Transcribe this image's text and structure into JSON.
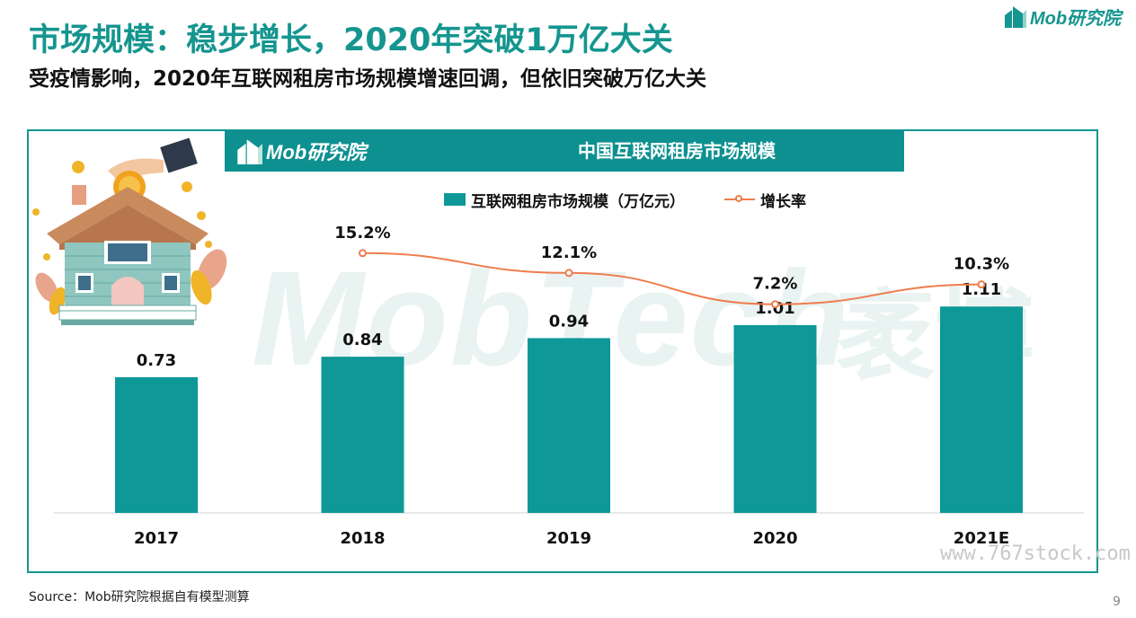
{
  "page": {
    "title": "市场规模：稳步增长，2020年突破1万亿大关",
    "subtitle": "受疫情影响，2020年互联网租房市场规模增速回调，但依旧突破万亿大关",
    "logo_text": "Mob研究院",
    "source": "Source：Mob研究院根据自有模型测算",
    "page_number": "9",
    "watermark_text": "MobTech",
    "watermark_cn": "袤博",
    "site_watermark": "www.767stock.com"
  },
  "colors": {
    "accent": "#15958f",
    "bar": "#0e9898",
    "line": "#ee7d4c"
  },
  "chart_data": {
    "type": "bar",
    "title": "中国互联网租房市场规模",
    "categories": [
      "2017",
      "2018",
      "2019",
      "2020",
      "2021E"
    ],
    "series": [
      {
        "name": "互联网租房市场规模（万亿元）",
        "type": "bar",
        "values": [
          0.73,
          0.84,
          0.94,
          1.01,
          1.11
        ],
        "labels": [
          "0.73",
          "0.84",
          "0.94",
          "1.01",
          "1.11"
        ]
      },
      {
        "name": "增长率",
        "type": "line",
        "values": [
          null,
          15.2,
          12.1,
          7.2,
          10.3
        ],
        "labels": [
          "",
          "15.2%",
          "12.1%",
          "7.2%",
          "10.3%"
        ]
      }
    ],
    "legend_position": "top-center",
    "grid": false
  }
}
